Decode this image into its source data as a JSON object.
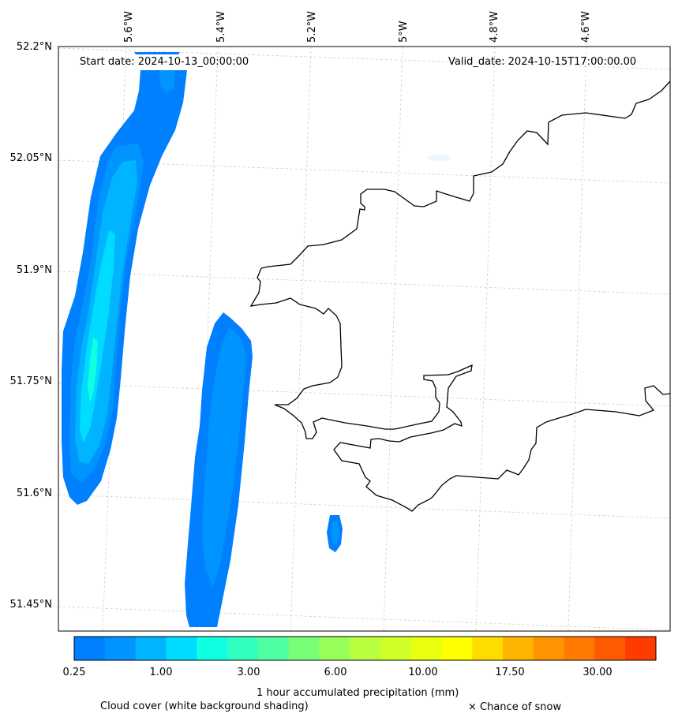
{
  "header": {
    "start_date": "Start date: 2024-10-13_00:00:00",
    "valid_date": "Valid_date: 2024-10-15T17:00:00.00"
  },
  "axes": {
    "lon_labels": [
      "5.6°W",
      "5.4°W",
      "5.2°W",
      "5°W",
      "4.8°W",
      "4.6°W"
    ],
    "lat_labels": [
      "52.2°N",
      "52.05°N",
      "51.9°N",
      "51.75°N",
      "51.6°N",
      "51.45°N"
    ]
  },
  "colorbar": {
    "tick_labels": [
      "0.25",
      "1.00",
      "3.00",
      "6.00",
      "10.00",
      "17.50",
      "30.00"
    ],
    "colors": [
      "#0080ff",
      "#0094ff",
      "#00b4ff",
      "#00dcff",
      "#10ffe0",
      "#30ffc0",
      "#50ffa0",
      "#78ff78",
      "#98ff58",
      "#b8ff40",
      "#d0ff28",
      "#e8ff10",
      "#ffff00",
      "#ffdc00",
      "#ffb400",
      "#ff9400",
      "#ff7800",
      "#ff5a00",
      "#ff3c00"
    ],
    "label": "1 hour accumulated precipitation (mm)"
  },
  "footer": {
    "cloud_note": "Cloud cover (white background shading)",
    "snow_note": "× Chance of snow"
  },
  "style": {
    "coast_color": "#000000",
    "grid_color": "#cccccc"
  }
}
